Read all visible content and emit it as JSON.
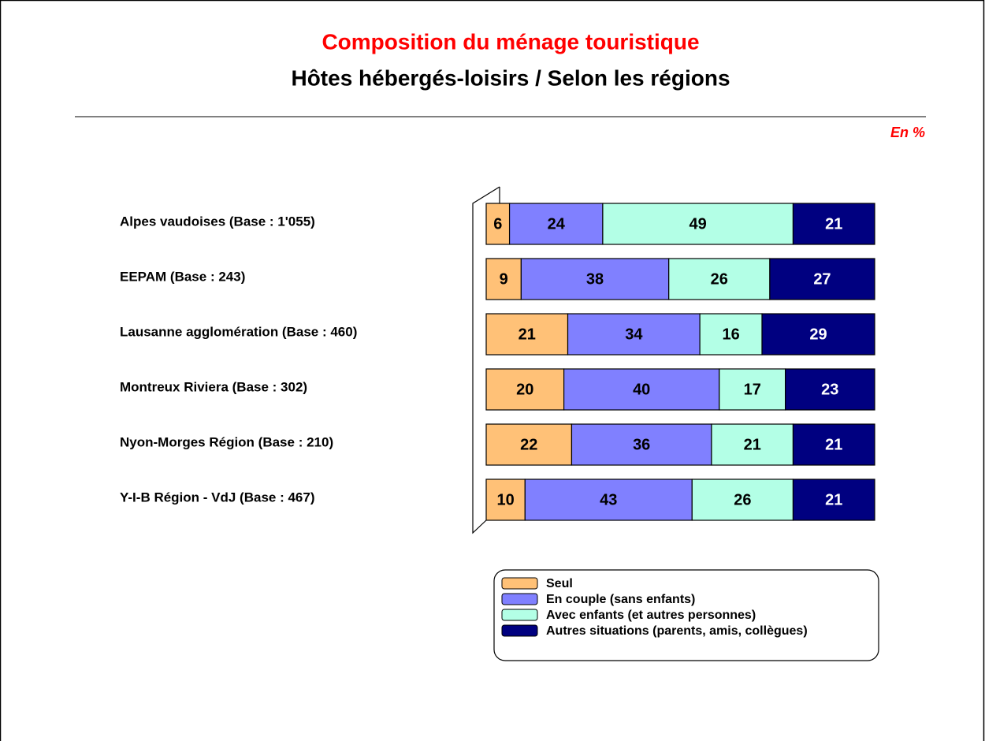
{
  "chart_data": {
    "type": "stacked-bar-horizontal",
    "title": "Composition du ménage touristique",
    "subtitle": "Hôtes hébergés-loisirs / Selon les régions",
    "annotation": "En %",
    "categories": [
      "Alpes vaudoises (Base : 1'055)",
      "EEPAM (Base : 243)",
      "Lausanne agglomération (Base : 460)",
      "Montreux Riviera (Base : 302)",
      "Nyon-Morges Région (Base : 210)",
      "Y-I-B Région - VdJ (Base : 467)"
    ],
    "series": [
      {
        "name": "Seul",
        "color": "#ffc177",
        "values": [
          6,
          9,
          21,
          20,
          22,
          10
        ]
      },
      {
        "name": "En couple (sans enfants)",
        "color": "#8080ff",
        "values": [
          24,
          38,
          34,
          40,
          36,
          43
        ]
      },
      {
        "name": "Avec enfants (et autres personnes)",
        "color": "#b3ffe6",
        "values": [
          49,
          26,
          16,
          17,
          21,
          26
        ]
      },
      {
        "name": "Autres situations (parents, amis, collègues)",
        "color": "#000080",
        "values": [
          21,
          27,
          29,
          23,
          21,
          21
        ]
      }
    ],
    "xlim": [
      0,
      100
    ]
  }
}
